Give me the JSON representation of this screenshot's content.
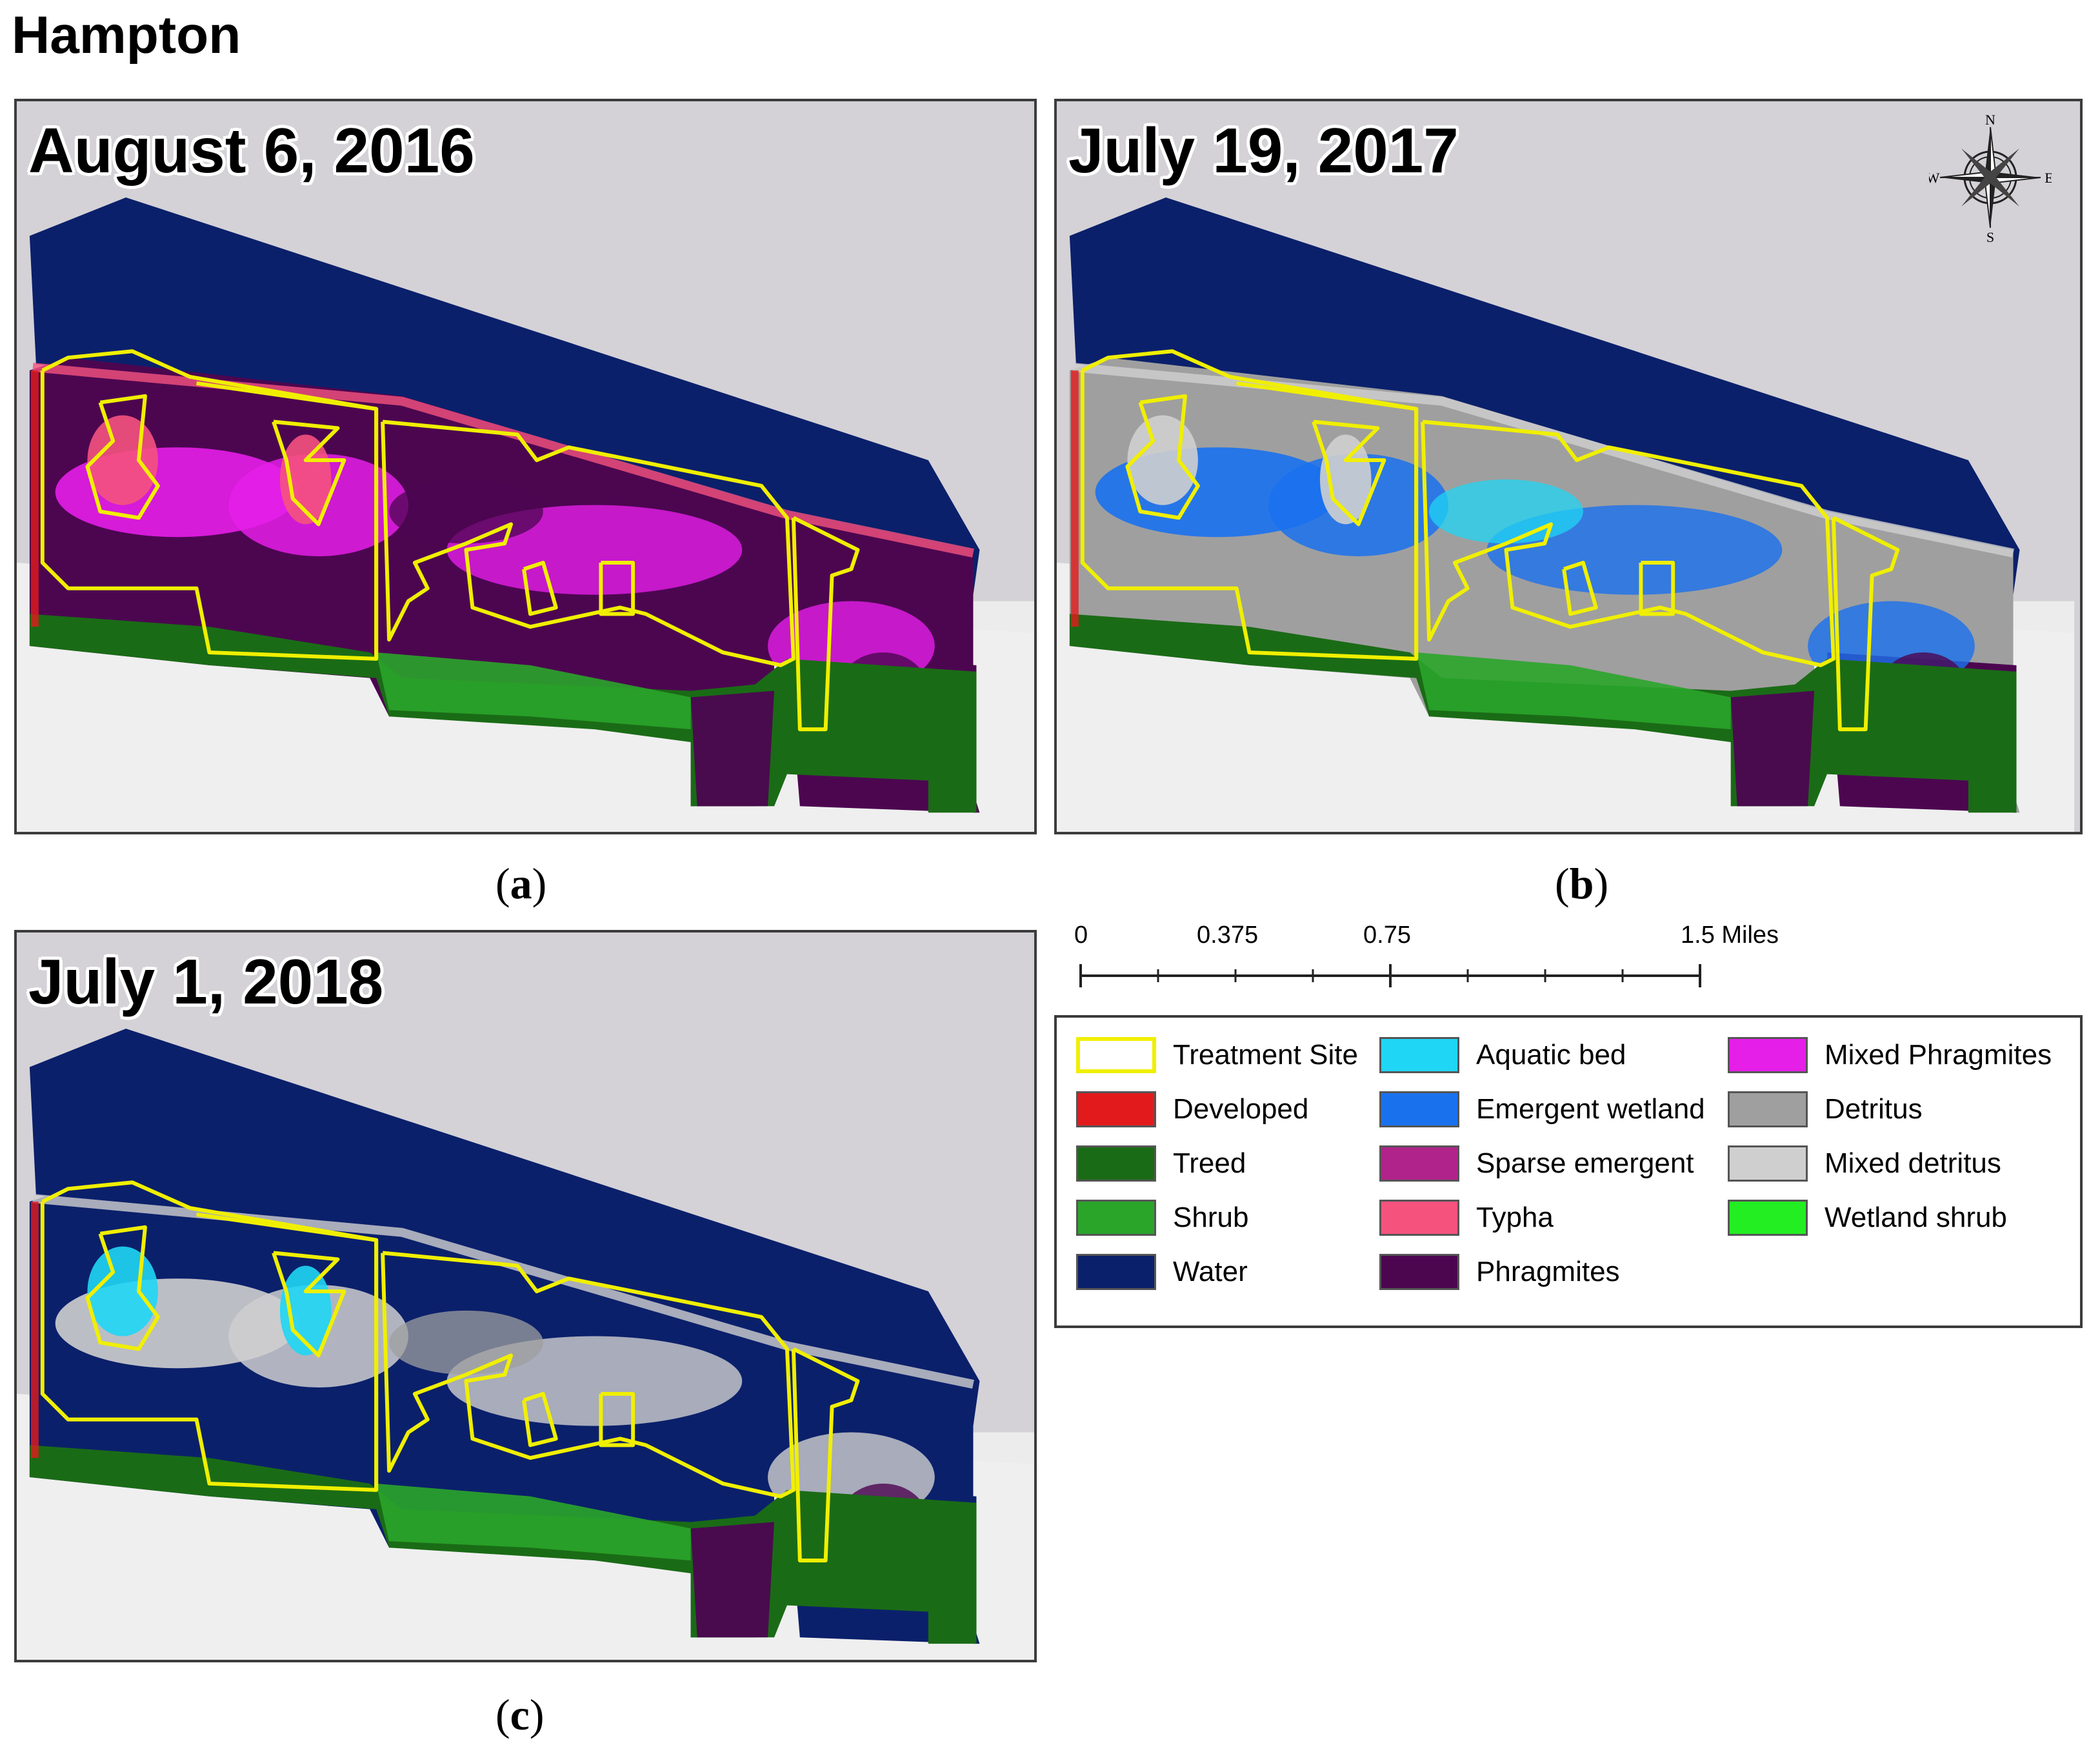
{
  "figure_title": "Hampton",
  "panels": [
    {
      "date": "August 6, 2016",
      "letter": "a",
      "year": 2016
    },
    {
      "date": "July 19, 2017",
      "letter": "b",
      "year": 2017
    },
    {
      "date": "July 1, 2018",
      "letter": "c",
      "year": 2018
    }
  ],
  "compass": {
    "n": "N",
    "s": "S",
    "e": "E",
    "w": "W"
  },
  "scale_bar": {
    "ticks": [
      "0",
      "0.375",
      "0.75",
      "1.5 Miles"
    ]
  },
  "legend": [
    {
      "label": "Treatment Site",
      "color": "#ffffff",
      "border": "#f0ef00"
    },
    {
      "label": "Developed",
      "color": "#e31a1c"
    },
    {
      "label": "Treed",
      "color": "#1a6b16"
    },
    {
      "label": "Shrub",
      "color": "#2aa52a"
    },
    {
      "label": "Water",
      "color": "#0b206b"
    },
    {
      "label": "Aquatic bed",
      "color": "#1fd6f4"
    },
    {
      "label": "Emergent wetland",
      "color": "#1a71ee"
    },
    {
      "label": "Sparse emergent",
      "color": "#b0238a"
    },
    {
      "label": "Typha",
      "color": "#f5527e"
    },
    {
      "label": "Phragmites",
      "color": "#4c0650"
    },
    {
      "label": "Mixed Phragmites",
      "color": "#e51ee8"
    },
    {
      "label": "Detritus",
      "color": "#9f9f9f"
    },
    {
      "label": "Mixed detritus",
      "color": "#cfcfcf"
    },
    {
      "label": "Wetland shrub",
      "color": "#22ee22"
    }
  ]
}
